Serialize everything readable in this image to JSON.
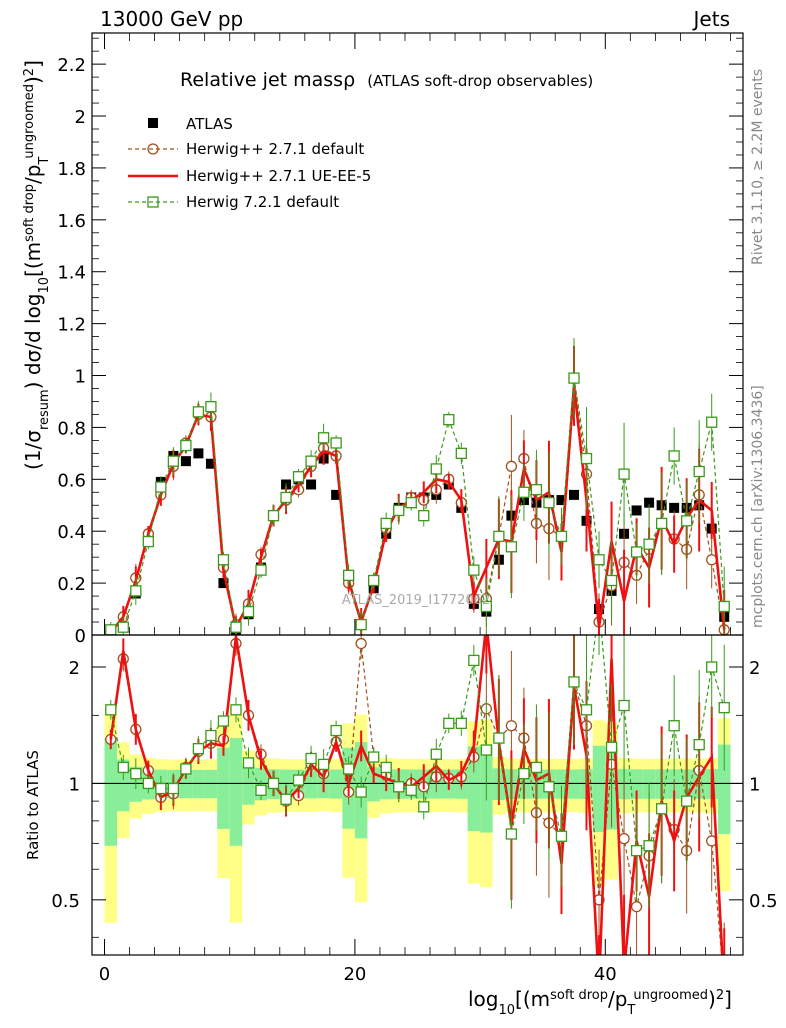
{
  "header": {
    "left": "13000 GeV pp",
    "right": "Jets"
  },
  "side_labels": {
    "rivet": "Rivet 3.1.10, ≥ 2.2M events",
    "mcplots": "mcplots.cern.ch [arXiv:1306.3436]"
  },
  "watermark": "ATLAS_2019_I1772062",
  "chart_data": {
    "type": "line",
    "title": "Relative jet massρ",
    "subtitle": "(ATLAS soft-drop observables)",
    "xlabel": "log10[(m^soft drop/pT^ungroomed)^2]",
    "ylabel": "(1/σresum) dσ/d log10[(m^soft drop/pT^ungroomed)^2]",
    "ratio_ylabel": "Ratio to ATLAS",
    "xlim": [
      -1,
      51
    ],
    "ylim": [
      0,
      2.32
    ],
    "ratio_ylim": [
      0.36,
      2.42
    ],
    "x_ticks": [
      "0",
      "20",
      "40"
    ],
    "y_ticks": [
      "0",
      "0.2",
      "0.4",
      "0.6",
      "0.8",
      "1",
      "1.2",
      "1.4",
      "1.6",
      "1.8",
      "2",
      "2.2"
    ],
    "ratio_ticks": [
      "0.5",
      "1",
      "2"
    ],
    "legend": [
      {
        "key": "atlas",
        "label": "ATLAS",
        "color": "#000000",
        "style": "square"
      },
      {
        "key": "hw271",
        "label": "Herwig++ 2.7.1 default",
        "color": "#a0501e",
        "style": "circle-dashed"
      },
      {
        "key": "hwue",
        "label": "Herwig++ 2.7.1 UE-EE-5",
        "color": "#ee1111",
        "style": "solid"
      },
      {
        "key": "hw721",
        "label": "Herwig 7.2.1 default",
        "color": "#3a9a1a",
        "style": "square-dashed"
      }
    ],
    "x": [
      0.5,
      1.5,
      2.5,
      3.5,
      4.5,
      5.5,
      6.5,
      7.5,
      8.5,
      9.5,
      10.5,
      11.5,
      12.5,
      13.5,
      14.5,
      15.5,
      16.5,
      17.5,
      18.5,
      19.5,
      20.5,
      21.5,
      22.5,
      23.5,
      24.5,
      25.5,
      26.5,
      27.5,
      28.5,
      29.5,
      30.5,
      31.5,
      32.5,
      33.5,
      34.5,
      35.5,
      36.5,
      37.5,
      38.5,
      39.5,
      40.5,
      41.5,
      42.5,
      43.5,
      44.5,
      45.5,
      46.5,
      47.5,
      48.5,
      49.5
    ],
    "series": [
      {
        "name": "ATLAS",
        "values": [
          0.01,
          0.03,
          0.16,
          0.36,
          0.59,
          0.69,
          0.67,
          0.7,
          0.66,
          0.2,
          0.02,
          0.08,
          0.26,
          0.46,
          0.58,
          0.6,
          0.58,
          0.68,
          0.54,
          0.21,
          0.04,
          0.18,
          0.39,
          0.49,
          0.53,
          0.53,
          0.54,
          0.58,
          0.49,
          0.12,
          0.09,
          0.29,
          0.46,
          0.52,
          0.51,
          0.52,
          0.52,
          0.54,
          0.44,
          0.1,
          0.17,
          0.39,
          0.48,
          0.51,
          0.5,
          0.49,
          0.49,
          0.5,
          0.41,
          0.07
        ]
      },
      {
        "name": "Herwig++ 2.7.1 default",
        "values": [
          0.01,
          0.07,
          0.22,
          0.39,
          0.54,
          0.65,
          0.74,
          0.85,
          0.84,
          0.26,
          0.04,
          0.12,
          0.31,
          0.46,
          0.52,
          0.56,
          0.65,
          0.72,
          0.69,
          0.2,
          0.04,
          0.21,
          0.41,
          0.48,
          0.53,
          0.52,
          0.56,
          0.6,
          0.51,
          0.14,
          0.14,
          0.38,
          0.65,
          0.68,
          0.43,
          0.41,
          0.38,
          0.99,
          0.62,
          0.05,
          0.19,
          0.28,
          0.23,
          0.33,
          0.43,
          0.37,
          0.33,
          0.54,
          0.29,
          0.02
        ]
      },
      {
        "name": "Herwig++ 2.7.1 UE-EE-5",
        "values": [
          0.01,
          0.07,
          0.21,
          0.39,
          0.54,
          0.66,
          0.73,
          0.85,
          0.84,
          0.25,
          0.03,
          0.12,
          0.3,
          0.46,
          0.52,
          0.58,
          0.65,
          0.71,
          0.69,
          0.21,
          0.05,
          0.19,
          0.4,
          0.49,
          0.52,
          0.55,
          0.6,
          0.59,
          0.52,
          0.15,
          0.26,
          0.37,
          0.36,
          0.64,
          0.52,
          0.55,
          0.32,
          0.96,
          0.52,
          0.03,
          0.36,
          0.13,
          0.34,
          0.26,
          0.45,
          0.35,
          0.45,
          0.52,
          0.48,
          0.02
        ]
      },
      {
        "name": "Herwig 7.2.1 default",
        "values": [
          0.02,
          0.03,
          0.17,
          0.36,
          0.57,
          0.67,
          0.73,
          0.86,
          0.88,
          0.29,
          0.03,
          0.09,
          0.25,
          0.46,
          0.53,
          0.61,
          0.67,
          0.76,
          0.74,
          0.23,
          0.04,
          0.21,
          0.43,
          0.48,
          0.51,
          0.46,
          0.64,
          0.83,
          0.7,
          0.25,
          0.11,
          0.38,
          0.34,
          0.55,
          0.56,
          0.51,
          0.38,
          0.99,
          0.68,
          0.29,
          0.21,
          0.62,
          0.32,
          0.35,
          0.43,
          0.69,
          0.44,
          0.63,
          0.82,
          0.11
        ]
      }
    ],
    "ratio_series": [
      {
        "name": "Herwig++ 2.7.1 default",
        "values": [
          1.3,
          2.1,
          1.38,
          1.08,
          0.92,
          0.94,
          1.1,
          1.21,
          1.27,
          1.3,
          2.3,
          1.5,
          1.19,
          1.0,
          0.9,
          0.93,
          1.12,
          1.06,
          1.28,
          0.95,
          2.3,
          1.17,
          1.05,
          0.98,
          1.0,
          0.98,
          1.04,
          1.03,
          1.04,
          1.17,
          1.56,
          1.31,
          1.41,
          1.31,
          0.84,
          0.79,
          0.73,
          1.83,
          1.41,
          0.5,
          1.12,
          0.72,
          0.48,
          0.65,
          0.86,
          0.76,
          0.67,
          1.08,
          0.71,
          0.3
        ]
      },
      {
        "name": "Herwig++ 2.7.1 UE-EE-5",
        "values": [
          1.3,
          2.2,
          1.38,
          1.08,
          0.92,
          0.96,
          1.09,
          1.21,
          1.27,
          1.25,
          2.4,
          1.5,
          1.15,
          1.0,
          0.9,
          0.97,
          1.12,
          1.04,
          1.28,
          1.0,
          1.25,
          1.06,
          1.03,
          1.0,
          0.98,
          1.04,
          1.11,
          1.02,
          1.06,
          1.25,
          2.6,
          1.28,
          0.78,
          1.23,
          1.02,
          1.06,
          0.62,
          1.78,
          1.18,
          0.3,
          2.1,
          0.33,
          0.71,
          0.51,
          0.9,
          0.71,
          0.92,
          1.04,
          1.17,
          0.29
        ]
      },
      {
        "name": "Herwig 7.2.1 default",
        "values": [
          1.55,
          1.1,
          1.06,
          1.0,
          0.97,
          0.97,
          1.09,
          1.23,
          1.33,
          1.45,
          1.55,
          1.13,
          0.96,
          1.0,
          0.91,
          1.02,
          1.16,
          1.12,
          1.37,
          1.09,
          0.95,
          1.17,
          1.1,
          0.98,
          0.96,
          0.87,
          1.19,
          1.43,
          1.43,
          2.08,
          1.22,
          1.31,
          0.74,
          1.06,
          1.1,
          0.98,
          0.73,
          1.83,
          1.55,
          2.9,
          1.24,
          1.59,
          0.67,
          0.69,
          0.86,
          1.41,
          0.9,
          1.26,
          2.0,
          1.57
        ]
      }
    ]
  }
}
